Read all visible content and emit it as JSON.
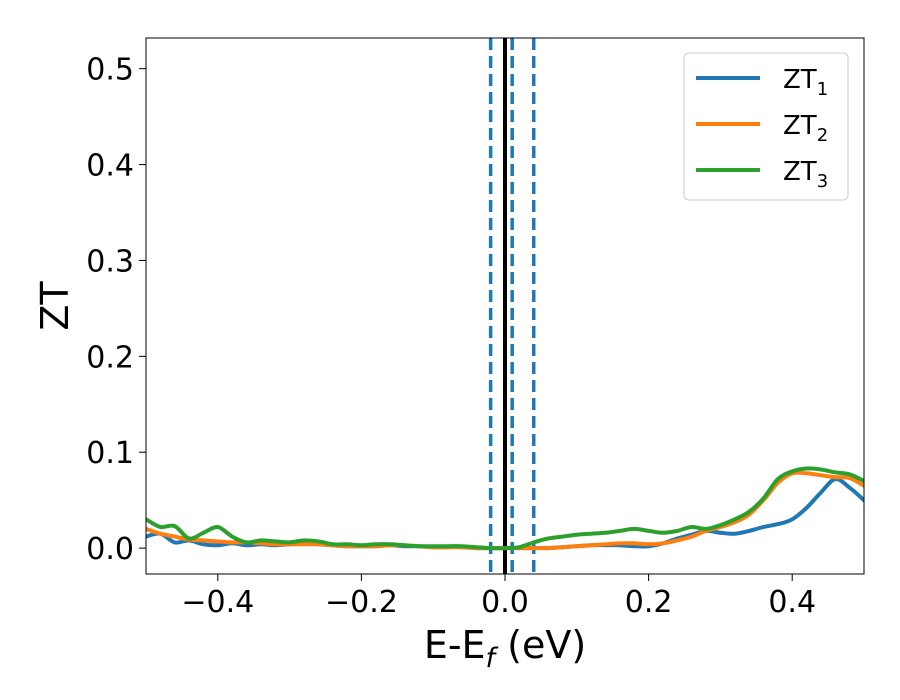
{
  "chart_data": {
    "type": "line",
    "xlabel_main": "E-E",
    "xlabel_sub": "f",
    "xlabel_unit": " (eV)",
    "ylabel": "ZT",
    "xlim": [
      -0.5,
      0.5
    ],
    "ylim": [
      -0.027,
      0.532
    ],
    "x_ticks": [
      -0.4,
      -0.2,
      0.0,
      0.2,
      0.4
    ],
    "x_tick_labels": [
      "−0.4",
      "−0.2",
      "0.0",
      "0.2",
      "0.4"
    ],
    "y_ticks": [
      0.0,
      0.1,
      0.2,
      0.3,
      0.4,
      0.5
    ],
    "y_tick_labels": [
      "0.0",
      "0.1",
      "0.2",
      "0.3",
      "0.4",
      "0.5"
    ],
    "grid": false,
    "legend_position": "top-right",
    "vertical_lines": [
      {
        "x": -0.02,
        "style": "dashed",
        "color": "#1f77b4"
      },
      {
        "x": 0.0,
        "style": "solid",
        "color": "#000000"
      },
      {
        "x": 0.01,
        "style": "dashed",
        "color": "#1f77b4"
      },
      {
        "x": 0.04,
        "style": "dashed",
        "color": "#1f77b4"
      }
    ],
    "series": [
      {
        "name_main": "ZT",
        "name_sub": "1",
        "color": "#1f77b4",
        "x": [
          -0.5,
          -0.48,
          -0.46,
          -0.44,
          -0.42,
          -0.4,
          -0.38,
          -0.36,
          -0.34,
          -0.32,
          -0.3,
          -0.28,
          -0.26,
          -0.24,
          -0.22,
          -0.2,
          -0.18,
          -0.16,
          -0.14,
          -0.12,
          -0.1,
          -0.08,
          -0.06,
          -0.04,
          -0.02,
          0.0,
          0.02,
          0.04,
          0.06,
          0.08,
          0.1,
          0.12,
          0.14,
          0.16,
          0.18,
          0.2,
          0.22,
          0.24,
          0.26,
          0.28,
          0.3,
          0.32,
          0.34,
          0.36,
          0.38,
          0.4,
          0.42,
          0.44,
          0.46,
          0.48,
          0.5
        ],
        "y": [
          0.012,
          0.015,
          0.006,
          0.008,
          0.004,
          0.003,
          0.005,
          0.003,
          0.004,
          0.003,
          0.004,
          0.005,
          0.004,
          0.003,
          0.002,
          0.002,
          0.002,
          0.003,
          0.002,
          0.002,
          0.001,
          0.001,
          0.001,
          0.0,
          0.0,
          0.0,
          0.0,
          0.0,
          0.0,
          0.001,
          0.002,
          0.003,
          0.003,
          0.003,
          0.002,
          0.002,
          0.005,
          0.01,
          0.014,
          0.018,
          0.016,
          0.015,
          0.018,
          0.022,
          0.025,
          0.03,
          0.042,
          0.058,
          0.072,
          0.063,
          0.05
        ]
      },
      {
        "name_main": "ZT",
        "name_sub": "2",
        "color": "#ff7f0e",
        "x": [
          -0.5,
          -0.48,
          -0.46,
          -0.44,
          -0.42,
          -0.4,
          -0.38,
          -0.36,
          -0.34,
          -0.32,
          -0.3,
          -0.28,
          -0.26,
          -0.24,
          -0.22,
          -0.2,
          -0.18,
          -0.16,
          -0.14,
          -0.12,
          -0.1,
          -0.08,
          -0.06,
          -0.04,
          -0.02,
          0.0,
          0.02,
          0.04,
          0.06,
          0.08,
          0.1,
          0.12,
          0.14,
          0.16,
          0.18,
          0.2,
          0.22,
          0.24,
          0.26,
          0.28,
          0.3,
          0.32,
          0.34,
          0.36,
          0.38,
          0.4,
          0.42,
          0.44,
          0.46,
          0.48,
          0.5
        ],
        "y": [
          0.02,
          0.015,
          0.012,
          0.009,
          0.008,
          0.007,
          0.006,
          0.006,
          0.005,
          0.004,
          0.004,
          0.004,
          0.004,
          0.003,
          0.002,
          0.002,
          0.002,
          0.003,
          0.003,
          0.002,
          0.001,
          0.001,
          0.001,
          0.0,
          0.0,
          0.0,
          0.0,
          0.0,
          0.0,
          0.001,
          0.002,
          0.003,
          0.004,
          0.005,
          0.005,
          0.004,
          0.005,
          0.008,
          0.012,
          0.018,
          0.022,
          0.027,
          0.035,
          0.05,
          0.068,
          0.078,
          0.078,
          0.076,
          0.074,
          0.073,
          0.065
        ]
      },
      {
        "name_main": "ZT",
        "name_sub": "3",
        "color": "#2ca02c",
        "x": [
          -0.5,
          -0.48,
          -0.46,
          -0.44,
          -0.42,
          -0.4,
          -0.38,
          -0.36,
          -0.34,
          -0.32,
          -0.3,
          -0.28,
          -0.26,
          -0.24,
          -0.22,
          -0.2,
          -0.18,
          -0.16,
          -0.14,
          -0.12,
          -0.1,
          -0.08,
          -0.06,
          -0.04,
          -0.02,
          0.0,
          0.02,
          0.04,
          0.06,
          0.08,
          0.1,
          0.12,
          0.14,
          0.16,
          0.18,
          0.2,
          0.22,
          0.24,
          0.26,
          0.28,
          0.3,
          0.32,
          0.34,
          0.36,
          0.38,
          0.4,
          0.42,
          0.44,
          0.46,
          0.48,
          0.5
        ],
        "y": [
          0.03,
          0.022,
          0.023,
          0.01,
          0.016,
          0.022,
          0.012,
          0.006,
          0.008,
          0.007,
          0.006,
          0.008,
          0.007,
          0.004,
          0.004,
          0.003,
          0.004,
          0.004,
          0.003,
          0.002,
          0.002,
          0.002,
          0.002,
          0.001,
          0.0,
          0.0,
          0.001,
          0.006,
          0.01,
          0.012,
          0.014,
          0.015,
          0.016,
          0.018,
          0.02,
          0.018,
          0.016,
          0.018,
          0.022,
          0.02,
          0.024,
          0.03,
          0.038,
          0.052,
          0.072,
          0.08,
          0.083,
          0.082,
          0.079,
          0.077,
          0.07
        ]
      }
    ]
  }
}
